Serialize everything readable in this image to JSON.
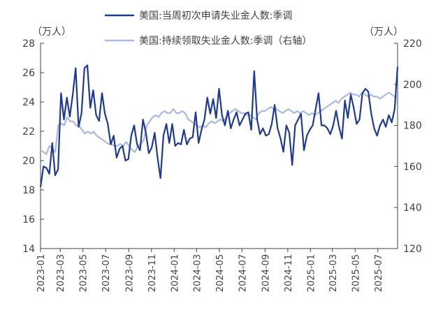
{
  "chart_data": {
    "type": "line",
    "title": "",
    "left_axis": {
      "unit": "（万人）",
      "min": 14,
      "max": 28,
      "ticks": [
        14,
        16,
        18,
        20,
        22,
        24,
        26,
        28
      ]
    },
    "right_axis": {
      "unit": "（万人）",
      "min": 120,
      "max": 220,
      "ticks": [
        120,
        140,
        160,
        180,
        200,
        220
      ]
    },
    "x_tick_labels": [
      "2023-01",
      "2023-03",
      "2023-05",
      "2023-07",
      "2023-09",
      "2023-11",
      "2024-01",
      "2024-03",
      "2024-05",
      "2024-07",
      "2024-09",
      "2024-11",
      "2025-01",
      "2025-03",
      "2025-05",
      "2025-07"
    ],
    "x_range": [
      "2023-01-07",
      "2025-08-23"
    ],
    "frequency": "weekly",
    "series": [
      {
        "name": "美国:当周初次申请失业金人数:季调",
        "axis": "left",
        "color": "#1f3a93",
        "values": [
          18.2,
          19.6,
          19.5,
          19.1,
          21.2,
          19.0,
          19.4,
          24.6,
          22.8,
          24.3,
          23.0,
          24.5,
          26.3,
          22.3,
          23.2,
          26.3,
          26.5,
          23.6,
          24.8,
          23.1,
          22.7,
          24.6,
          23.2,
          22.5,
          21.1,
          21.7,
          20.2,
          20.8,
          21.0,
          20.0,
          20.1,
          21.7,
          22.4,
          21.1,
          20.7,
          22.8,
          21.9,
          20.5,
          20.9,
          21.9,
          20.2,
          18.8,
          21.7,
          22.5,
          21.2,
          22.5,
          21.0,
          21.2,
          21.1,
          22.1,
          21.1,
          21.5,
          21.6,
          23.3,
          21.2,
          22.1,
          22.8,
          24.3,
          23.2,
          24.2,
          22.9,
          24.9,
          23.1,
          22.4,
          23.4,
          22.2,
          22.8,
          23.3,
          22.4,
          22.8,
          23.2,
          23.3,
          22.1,
          26.1,
          22.8,
          21.8,
          22.2,
          21.7,
          21.8,
          22.5,
          23.8,
          22.2,
          21.5,
          20.6,
          22.4,
          21.9,
          19.7,
          22.4,
          22.8,
          23.2,
          20.7,
          21.7,
          22.1,
          22.4,
          23.5,
          24.6,
          22.4,
          22.4,
          22.2,
          21.8,
          22.4,
          23.4,
          22.3,
          21.5,
          24.1,
          22.9,
          24.5,
          23.6,
          22.5,
          22.8,
          24.6,
          24.9,
          24.7,
          23.2,
          22.2,
          21.7,
          22.4,
          22.8,
          22.3,
          23.1,
          22.6,
          23.5,
          26.4
        ]
      },
      {
        "name": "美国:持续领取失业金人数:季调（右轴）",
        "axis": "right",
        "color": "#a9b9e0",
        "values": [
          168,
          167,
          166,
          170,
          169,
          167,
          180,
          181,
          180,
          184,
          182,
          182,
          180,
          180,
          178,
          176,
          177,
          176,
          177,
          175,
          174,
          173,
          172,
          171,
          171,
          170,
          170,
          171,
          170,
          172,
          170,
          168,
          167,
          170,
          171,
          173,
          180,
          182,
          184,
          185,
          184,
          186,
          187,
          186,
          186,
          188,
          186,
          186,
          187,
          186,
          183,
          182,
          181,
          180,
          179,
          180,
          179,
          181,
          182,
          181,
          182,
          183,
          182,
          184,
          186,
          187,
          188,
          187,
          186,
          186,
          185,
          185,
          184,
          183,
          186,
          187,
          187,
          188,
          189,
          188,
          188,
          187,
          186,
          187,
          188,
          187,
          186,
          187,
          186,
          187,
          186,
          185,
          186,
          185,
          186,
          187,
          188,
          189,
          190,
          191,
          192,
          191,
          193,
          194,
          195,
          196,
          195,
          195,
          194,
          196,
          195,
          194,
          195,
          194,
          194,
          193,
          194,
          195,
          196,
          195,
          194,
          193
        ]
      }
    ]
  }
}
